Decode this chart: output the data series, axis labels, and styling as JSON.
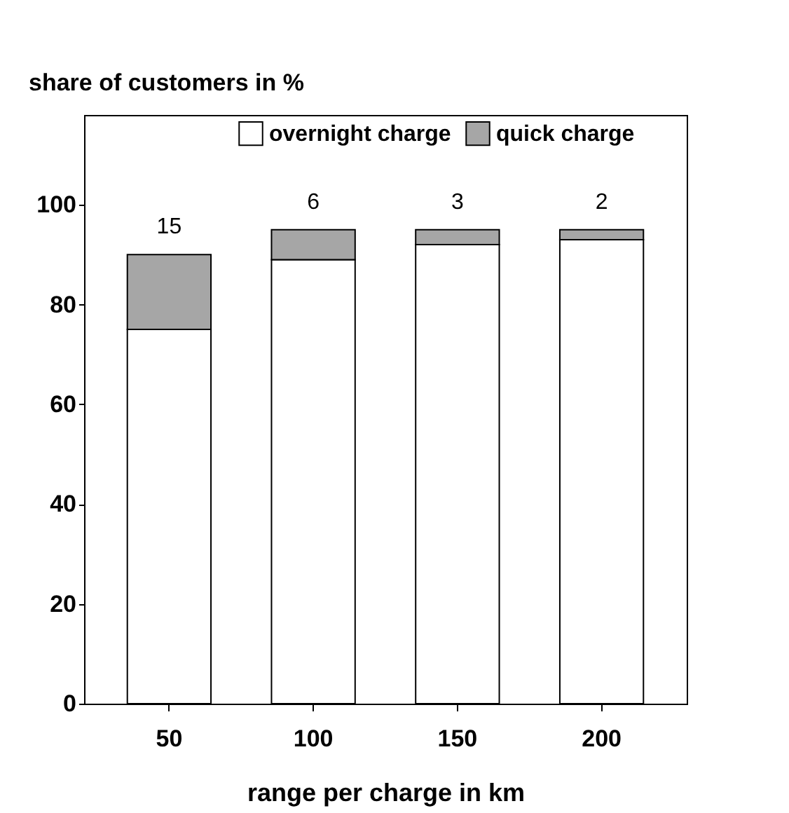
{
  "chart_data": {
    "type": "bar",
    "stacked": true,
    "xlabel": "range per charge in km",
    "ylabel": "share of customers in %",
    "categories": [
      "50",
      "100",
      "150",
      "200"
    ],
    "series": [
      {
        "name": "overnight charge",
        "color": "#ffffff",
        "values": [
          75,
          89,
          92,
          93
        ]
      },
      {
        "name": "quick charge",
        "color": "#a6a6a6",
        "values": [
          15,
          6,
          3,
          2
        ],
        "value_labels": [
          "15",
          "6",
          "3",
          "2"
        ]
      }
    ],
    "ylim": [
      0,
      118
    ],
    "yticks": [
      0,
      20,
      40,
      60,
      80,
      100
    ],
    "legend": "top",
    "grid": false
  }
}
